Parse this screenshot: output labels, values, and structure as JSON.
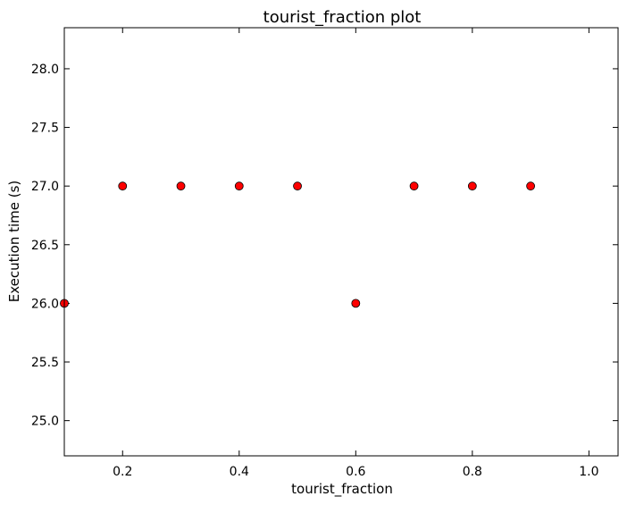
{
  "chart_data": {
    "type": "scatter",
    "title": "tourist_fraction plot",
    "xlabel": "tourist_fraction",
    "ylabel": "Execution time (s)",
    "xlim": [
      0.1,
      1.05
    ],
    "ylim": [
      24.7,
      28.35
    ],
    "xticks": [
      0.2,
      0.4,
      0.6,
      0.8,
      1.0
    ],
    "xtick_labels": [
      "0.2",
      "0.4",
      "0.6",
      "0.8",
      "1.0"
    ],
    "yticks": [
      25.0,
      25.5,
      26.0,
      26.5,
      27.0,
      27.5,
      28.0
    ],
    "ytick_labels": [
      "25.0",
      "25.5",
      "26.0",
      "26.5",
      "27.0",
      "27.5",
      "28.0"
    ],
    "grid": false,
    "marker_color": "#ff0000",
    "marker_edge_color": "#000000",
    "x": [
      0.1,
      0.2,
      0.3,
      0.4,
      0.5,
      0.6,
      0.7,
      0.8,
      0.9
    ],
    "y": [
      26.0,
      27.0,
      27.0,
      27.0,
      27.0,
      26.0,
      27.0,
      27.0,
      27.0
    ]
  }
}
